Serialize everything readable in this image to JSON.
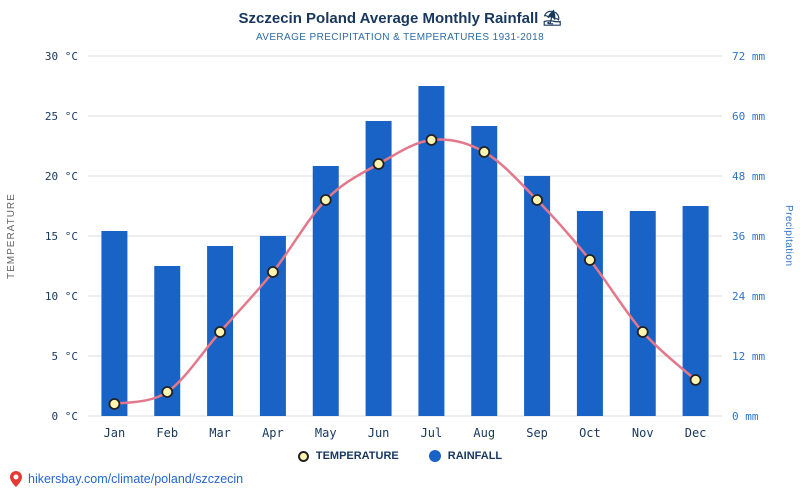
{
  "header": {
    "title": "Szczecin Poland Average Monthly Rainfall ⛱",
    "subtitle": "AVERAGE PRECIPITATION & TEMPERATURES 1931-2018"
  },
  "legend": {
    "temperature": "TEMPERATURE",
    "rainfall": "RAINFALL"
  },
  "footer": {
    "link_text": "hikersbay.com/climate/poland/szczecin"
  },
  "colors": {
    "title": "#17375e",
    "subtitle": "#2d6ca2",
    "bar": "#1a63c6",
    "line": "#e4788a",
    "marker_fill": "#fff3b0",
    "marker_stroke": "#222222",
    "grid": "#dcdcdc",
    "left_tick": "#17375e",
    "right_tick": "#2e75c9",
    "month": "#17375e",
    "left_axis_title": "#666666",
    "right_axis_title": "#2e75c9",
    "link": "#2666cf",
    "pin": "#e53935"
  },
  "chart_data": {
    "type": "bar+line",
    "title": "Szczecin Poland Average Monthly Rainfall",
    "subtitle": "AVERAGE PRECIPITATION & TEMPERATURES 1931-2018",
    "categories": [
      "Jan",
      "Feb",
      "Mar",
      "Apr",
      "May",
      "Jun",
      "Jul",
      "Aug",
      "Sep",
      "Oct",
      "Nov",
      "Dec"
    ],
    "series": [
      {
        "name": "RAINFALL",
        "type": "bar",
        "axis": "right",
        "unit": "mm",
        "values": [
          37,
          30,
          34,
          36,
          50,
          59,
          66,
          58,
          48,
          41,
          41,
          42
        ]
      },
      {
        "name": "TEMPERATURE",
        "type": "line",
        "axis": "left",
        "unit": "°C",
        "values": [
          1,
          2,
          7,
          12,
          18,
          21,
          23,
          22,
          18,
          13,
          7,
          3
        ]
      }
    ],
    "left_axis": {
      "title": "TEMPERATURE",
      "range": [
        0,
        30
      ],
      "ticks": [
        0,
        5,
        10,
        15,
        20,
        25,
        30
      ],
      "tick_labels": [
        "0 °C",
        "5 °C",
        "10 °C",
        "15 °C",
        "20 °C",
        "25 °C",
        "30 °C"
      ]
    },
    "right_axis": {
      "title": "Precipitation",
      "range": [
        0,
        72
      ],
      "ticks": [
        0,
        12,
        24,
        36,
        48,
        60,
        72
      ],
      "tick_labels": [
        "0 mm",
        "12 mm",
        "24 mm",
        "36 mm",
        "48 mm",
        "60 mm",
        "72 mm"
      ]
    },
    "grid": true,
    "legend_position": "bottom"
  }
}
